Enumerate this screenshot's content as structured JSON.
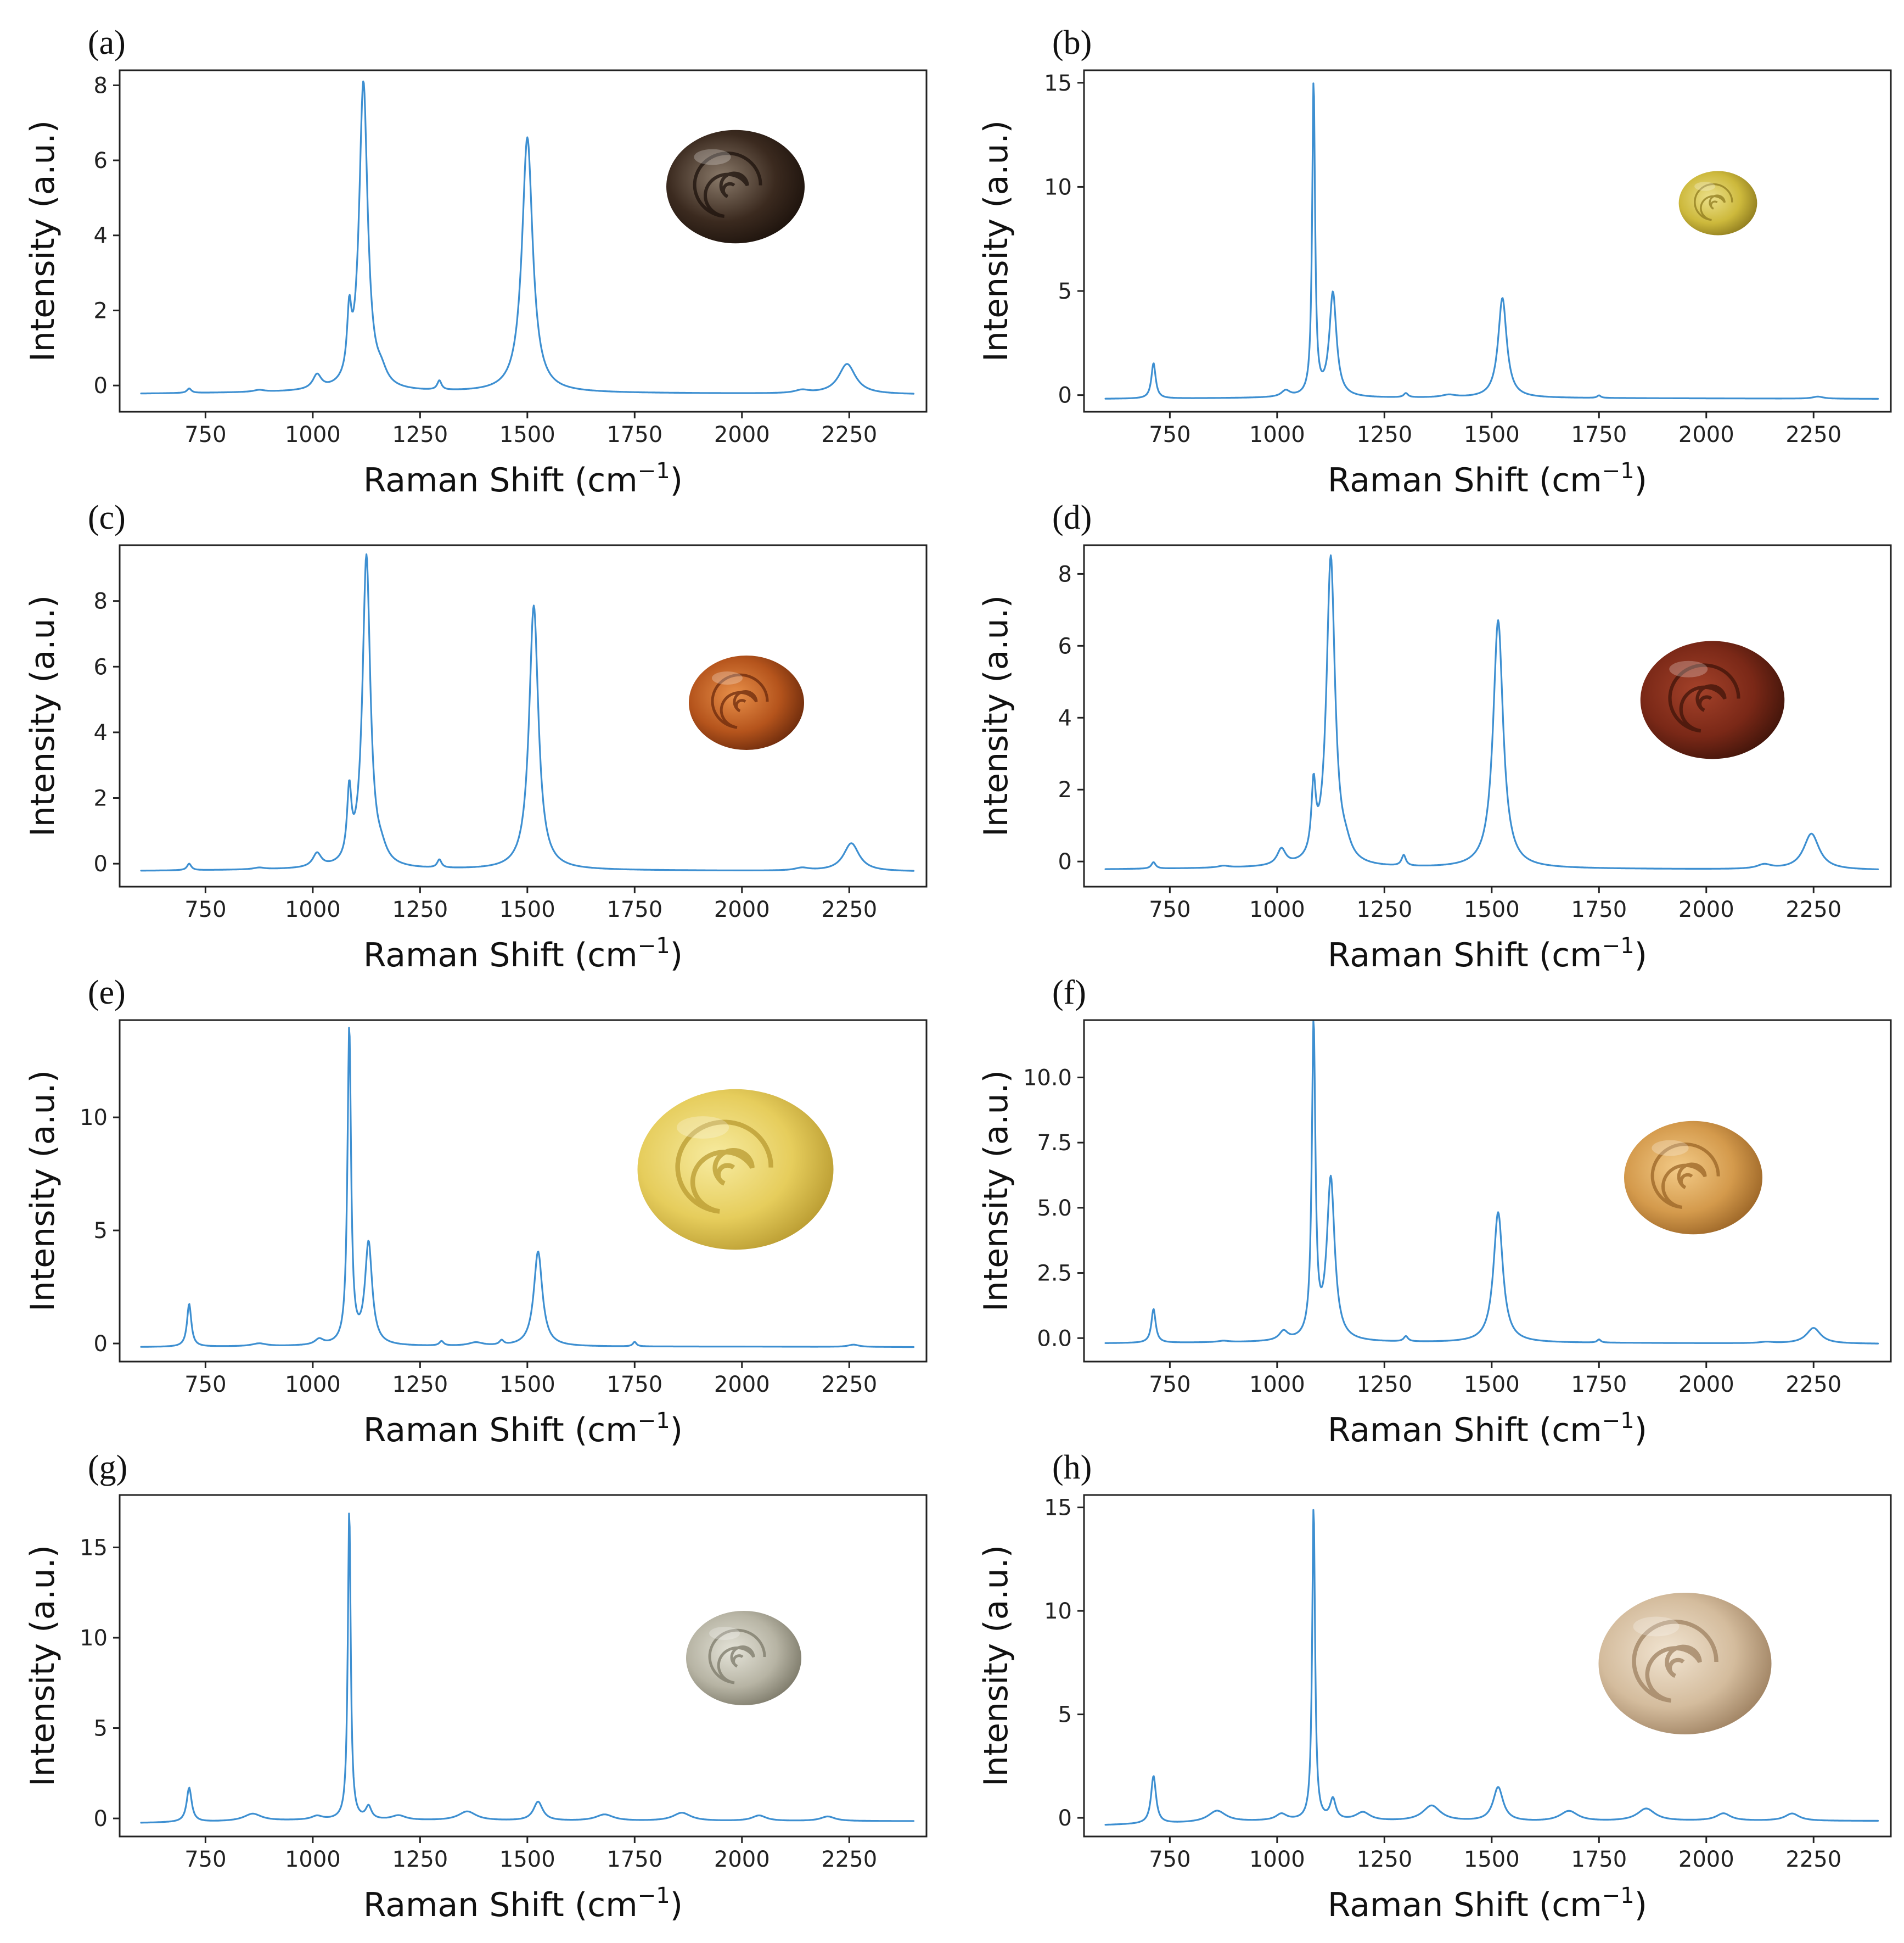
{
  "colors": {
    "series": "#3d8fd1",
    "axes": "#222222",
    "background": "#ffffff"
  },
  "chart_data": [
    {
      "panel_label": "(a)",
      "type": "line",
      "xlabel": "Raman Shift (cm",
      "xlabel_sup": "−1",
      "xlabel_close": ")",
      "ylabel": "Intensity (a.u.)",
      "xlim": [
        550,
        2430
      ],
      "ylim": [
        -0.7,
        8.4
      ],
      "xticks": [
        750,
        1000,
        1250,
        1500,
        1750,
        2000,
        2250
      ],
      "xtick_labels": [
        "750",
        "1000",
        "1250",
        "1500",
        "1750",
        "2000",
        "2250"
      ],
      "yticks": [
        0,
        2,
        4,
        6,
        8
      ],
      "ytick_labels": [
        "0",
        "2",
        "4",
        "6",
        "8"
      ],
      "baseline": [
        [
          600,
          -0.22
        ],
        [
          1000,
          -0.18
        ],
        [
          1600,
          -0.2
        ],
        [
          2000,
          -0.22
        ],
        [
          2400,
          -0.24
        ]
      ],
      "peaks": [
        [
          712,
          0.12,
          6
        ],
        [
          875,
          0.05,
          15
        ],
        [
          1010,
          0.38,
          12
        ],
        [
          1085,
          1.6,
          6
        ],
        [
          1118,
          8.2,
          12
        ],
        [
          1160,
          0.3,
          15
        ],
        [
          1295,
          0.25,
          6
        ],
        [
          1500,
          6.8,
          15
        ],
        [
          2140,
          0.08,
          20
        ],
        [
          2245,
          0.8,
          24
        ]
      ],
      "image": {
        "alt": "dark brown snail shell",
        "fill1": "#8a7a6a",
        "fill2": "#3b2a1f",
        "fill3": "#1c120c"
      }
    },
    {
      "panel_label": "(b)",
      "type": "line",
      "xlabel": "Raman Shift (cm",
      "xlabel_sup": "−1",
      "xlabel_close": ")",
      "ylabel": "Intensity (a.u.)",
      "xlim": [
        550,
        2430
      ],
      "ylim": [
        -0.8,
        15.6
      ],
      "xticks": [
        750,
        1000,
        1250,
        1500,
        1750,
        2000,
        2250
      ],
      "xtick_labels": [
        "750",
        "1000",
        "1250",
        "1500",
        "1750",
        "2000",
        "2250"
      ],
      "yticks": [
        0,
        5,
        10,
        15
      ],
      "ytick_labels": [
        "0",
        "5",
        "10",
        "15"
      ],
      "baseline": [
        [
          600,
          -0.18
        ],
        [
          1000,
          -0.14
        ],
        [
          1600,
          -0.14
        ],
        [
          2000,
          -0.16
        ],
        [
          2400,
          -0.18
        ]
      ],
      "peaks": [
        [
          712,
          1.7,
          6
        ],
        [
          1020,
          0.3,
          12
        ],
        [
          1085,
          15.1,
          4
        ],
        [
          1130,
          5.0,
          10
        ],
        [
          1300,
          0.2,
          6
        ],
        [
          1400,
          0.12,
          20
        ],
        [
          1525,
          4.8,
          12
        ],
        [
          1750,
          0.12,
          5
        ],
        [
          2260,
          0.1,
          15
        ]
      ],
      "image": {
        "alt": "small yellow snail shell",
        "fill1": "#ece08a",
        "fill2": "#cdb93c",
        "fill3": "#8d7a1e"
      }
    },
    {
      "panel_label": "(c)",
      "type": "line",
      "xlabel": "Raman Shift (cm",
      "xlabel_sup": "−1",
      "xlabel_close": ")",
      "ylabel": "Intensity (a.u.)",
      "xlim": [
        550,
        2430
      ],
      "ylim": [
        -0.7,
        9.7
      ],
      "xticks": [
        750,
        1000,
        1250,
        1500,
        1750,
        2000,
        2250
      ],
      "xtick_labels": [
        "750",
        "1000",
        "1250",
        "1500",
        "1750",
        "2000",
        "2250"
      ],
      "yticks": [
        0,
        2,
        4,
        6,
        8
      ],
      "ytick_labels": [
        "0",
        "2",
        "4",
        "6",
        "8"
      ],
      "baseline": [
        [
          600,
          -0.22
        ],
        [
          1000,
          -0.18
        ],
        [
          1600,
          -0.2
        ],
        [
          2000,
          -0.22
        ],
        [
          2400,
          -0.24
        ]
      ],
      "peaks": [
        [
          712,
          0.2,
          6
        ],
        [
          875,
          0.05,
          15
        ],
        [
          1010,
          0.42,
          12
        ],
        [
          1085,
          2.05,
          6
        ],
        [
          1125,
          9.5,
          11
        ],
        [
          1160,
          0.3,
          15
        ],
        [
          1295,
          0.25,
          6
        ],
        [
          1515,
          8.05,
          13
        ],
        [
          2140,
          0.08,
          20
        ],
        [
          2255,
          0.85,
          22
        ]
      ],
      "image": {
        "alt": "orange-brown snail shell",
        "fill1": "#e8904a",
        "fill2": "#b5541c",
        "fill3": "#6b2a0c"
      }
    },
    {
      "panel_label": "(d)",
      "type": "line",
      "xlabel": "Raman Shift (cm",
      "xlabel_sup": "−1",
      "xlabel_close": ")",
      "ylabel": "Intensity (a.u.)",
      "xlim": [
        550,
        2430
      ],
      "ylim": [
        -0.7,
        8.8
      ],
      "xticks": [
        750,
        1000,
        1250,
        1500,
        1750,
        2000,
        2250
      ],
      "xtick_labels": [
        "750",
        "1000",
        "1250",
        "1500",
        "1750",
        "2000",
        "2250"
      ],
      "yticks": [
        0,
        2,
        4,
        6,
        8
      ],
      "ytick_labels": [
        "0",
        "2",
        "4",
        "6",
        "8"
      ],
      "baseline": [
        [
          600,
          -0.22
        ],
        [
          1000,
          -0.18
        ],
        [
          1600,
          -0.2
        ],
        [
          2000,
          -0.22
        ],
        [
          2400,
          -0.24
        ]
      ],
      "peaks": [
        [
          712,
          0.18,
          6
        ],
        [
          875,
          0.05,
          15
        ],
        [
          1010,
          0.45,
          12
        ],
        [
          1085,
          1.9,
          6
        ],
        [
          1125,
          8.6,
          12
        ],
        [
          1160,
          0.3,
          15
        ],
        [
          1295,
          0.3,
          6
        ],
        [
          1515,
          6.9,
          14
        ],
        [
          2135,
          0.12,
          20
        ],
        [
          2245,
          1.0,
          22
        ]
      ],
      "image": {
        "alt": "reddish-brown snail shell",
        "fill1": "#a4422a",
        "fill2": "#7a2817",
        "fill3": "#3f140a"
      }
    },
    {
      "panel_label": "(e)",
      "type": "line",
      "xlabel": "Raman Shift (cm",
      "xlabel_sup": "−1",
      "xlabel_close": ")",
      "ylabel": "Intensity (a.u.)",
      "xlim": [
        550,
        2430
      ],
      "ylim": [
        -0.8,
        14.3
      ],
      "xticks": [
        750,
        1000,
        1250,
        1500,
        1750,
        2000,
        2250
      ],
      "xtick_labels": [
        "750",
        "1000",
        "1250",
        "1500",
        "1750",
        "2000",
        "2250"
      ],
      "yticks": [
        0,
        5,
        10
      ],
      "ytick_labels": [
        "0",
        "5",
        "10"
      ],
      "baseline": [
        [
          600,
          -0.16
        ],
        [
          1000,
          -0.12
        ],
        [
          1600,
          -0.14
        ],
        [
          2000,
          -0.14
        ],
        [
          2400,
          -0.16
        ]
      ],
      "peaks": [
        [
          712,
          1.9,
          6
        ],
        [
          875,
          0.12,
          20
        ],
        [
          1015,
          0.25,
          12
        ],
        [
          1085,
          14.0,
          5
        ],
        [
          1130,
          4.5,
          10
        ],
        [
          1300,
          0.2,
          6
        ],
        [
          1380,
          0.15,
          20
        ],
        [
          1440,
          0.2,
          6
        ],
        [
          1525,
          4.2,
          12
        ],
        [
          1750,
          0.2,
          5
        ],
        [
          2260,
          0.1,
          15
        ]
      ],
      "image": {
        "alt": "large pale yellow snail shell",
        "fill1": "#f7eba0",
        "fill2": "#e6cd5c",
        "fill3": "#b89a30"
      }
    },
    {
      "panel_label": "(f)",
      "type": "line",
      "xlabel": "Raman Shift (cm",
      "xlabel_sup": "−1",
      "xlabel_close": ")",
      "ylabel": "Intensity (a.u.)",
      "xlim": [
        550,
        2430
      ],
      "ylim": [
        -0.9,
        12.2
      ],
      "xticks": [
        750,
        1000,
        1250,
        1500,
        1750,
        2000,
        2250
      ],
      "xtick_labels": [
        "750",
        "1000",
        "1250",
        "1500",
        "1750",
        "2000",
        "2250"
      ],
      "yticks": [
        0,
        2.5,
        5,
        7.5,
        10
      ],
      "ytick_labels": [
        "0.0",
        "2.5",
        "5.0",
        "7.5",
        "10.0"
      ],
      "baseline": [
        [
          600,
          -0.2
        ],
        [
          1000,
          -0.16
        ],
        [
          1600,
          -0.18
        ],
        [
          2000,
          -0.2
        ],
        [
          2400,
          -0.22
        ]
      ],
      "peaks": [
        [
          712,
          1.3,
          6
        ],
        [
          875,
          0.05,
          15
        ],
        [
          1015,
          0.35,
          12
        ],
        [
          1085,
          12.0,
          5
        ],
        [
          1125,
          6.2,
          11
        ],
        [
          1300,
          0.2,
          6
        ],
        [
          1515,
          5.0,
          13
        ],
        [
          1750,
          0.12,
          5
        ],
        [
          2140,
          0.05,
          20
        ],
        [
          2250,
          0.6,
          20
        ]
      ],
      "image": {
        "alt": "light brown snail shell",
        "fill1": "#f3cb88",
        "fill2": "#d49a4c",
        "fill3": "#9a6426"
      }
    },
    {
      "panel_label": "(g)",
      "type": "line",
      "xlabel": "Raman Shift (cm",
      "xlabel_sup": "−1",
      "xlabel_close": ")",
      "ylabel": "Intensity (a.u.)",
      "xlim": [
        550,
        2430
      ],
      "ylim": [
        -1.0,
        17.9
      ],
      "xticks": [
        750,
        1000,
        1250,
        1500,
        1750,
        2000,
        2250
      ],
      "xtick_labels": [
        "750",
        "1000",
        "1250",
        "1500",
        "1750",
        "2000",
        "2250"
      ],
      "yticks": [
        0,
        5,
        10,
        15
      ],
      "ytick_labels": [
        "0",
        "5",
        "10",
        "15"
      ],
      "baseline": [
        [
          600,
          -0.25
        ],
        [
          1000,
          -0.1
        ],
        [
          1600,
          -0.15
        ],
        [
          2000,
          -0.15
        ],
        [
          2400,
          -0.15
        ]
      ],
      "peaks": [
        [
          712,
          1.9,
          7
        ],
        [
          860,
          0.4,
          25
        ],
        [
          1010,
          0.2,
          15
        ],
        [
          1085,
          17.2,
          4
        ],
        [
          1130,
          0.7,
          8
        ],
        [
          1200,
          0.25,
          20
        ],
        [
          1360,
          0.5,
          25
        ],
        [
          1525,
          1.05,
          13
        ],
        [
          1680,
          0.35,
          25
        ],
        [
          1860,
          0.45,
          25
        ],
        [
          2040,
          0.3,
          20
        ],
        [
          2200,
          0.25,
          20
        ]
      ],
      "image": {
        "alt": "pale grey snail shell",
        "fill1": "#e4e3d8",
        "fill2": "#b7b4a4",
        "fill3": "#7b7868"
      }
    },
    {
      "panel_label": "(h)",
      "type": "line",
      "xlabel": "Raman Shift (cm",
      "xlabel_sup": "−1",
      "xlabel_close": ")",
      "ylabel": "Intensity (a.u.)",
      "xlim": [
        550,
        2430
      ],
      "ylim": [
        -0.9,
        15.6
      ],
      "xticks": [
        750,
        1000,
        1250,
        1500,
        1750,
        2000,
        2250
      ],
      "xtick_labels": [
        "750",
        "1000",
        "1250",
        "1500",
        "1750",
        "2000",
        "2250"
      ],
      "yticks": [
        0,
        5,
        10,
        15
      ],
      "ytick_labels": [
        "0",
        "5",
        "10",
        "15"
      ],
      "baseline": [
        [
          600,
          -0.35
        ],
        [
          1000,
          -0.15
        ],
        [
          1600,
          -0.2
        ],
        [
          2000,
          -0.15
        ],
        [
          2400,
          -0.15
        ]
      ],
      "peaks": [
        [
          712,
          2.3,
          7
        ],
        [
          860,
          0.55,
          25
        ],
        [
          1010,
          0.3,
          15
        ],
        [
          1085,
          15.2,
          4
        ],
        [
          1130,
          1.0,
          8
        ],
        [
          1200,
          0.4,
          20
        ],
        [
          1360,
          0.75,
          25
        ],
        [
          1515,
          1.65,
          14
        ],
        [
          1680,
          0.5,
          25
        ],
        [
          1860,
          0.6,
          25
        ],
        [
          2040,
          0.35,
          20
        ],
        [
          2200,
          0.35,
          20
        ]
      ],
      "image": {
        "alt": "cream-colored snail shell",
        "fill1": "#f1e4d1",
        "fill2": "#d4bc9d",
        "fill3": "#9d8060"
      }
    }
  ]
}
